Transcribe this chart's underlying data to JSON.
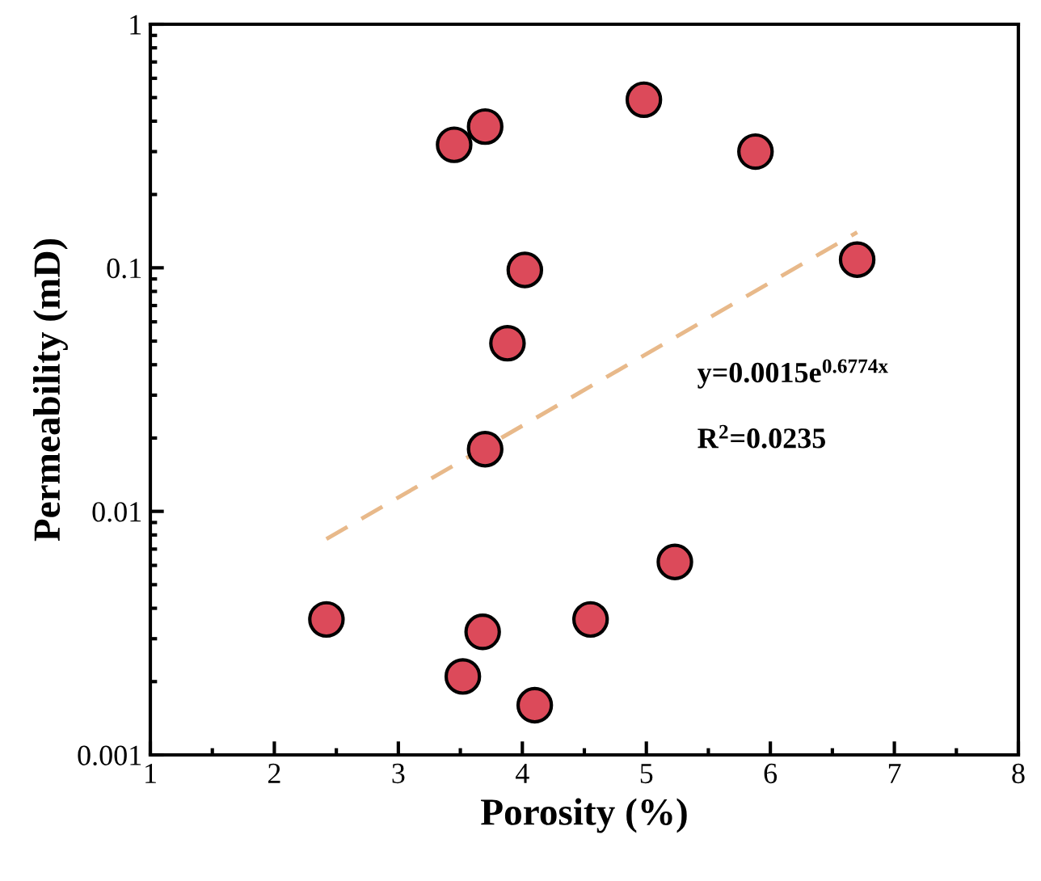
{
  "chart_data": {
    "type": "scatter",
    "xlabel": "Porosity (%)",
    "ylabel": "Permeability (mD)",
    "log": "y",
    "xlim": [
      1,
      8
    ],
    "xticks": [
      1,
      2,
      3,
      4,
      5,
      6,
      7,
      8
    ],
    "ylim": [
      0.001,
      1
    ],
    "yticks": [
      0.001,
      0.01,
      0.1,
      1
    ],
    "grid": false,
    "legend": false,
    "series": [
      {
        "color": "#dc4a5a",
        "marker": "circle",
        "x": [
          3.45,
          3.7,
          4.98,
          5.88,
          4.02,
          3.88,
          6.7,
          3.7,
          2.42,
          3.52,
          3.68,
          4.1,
          4.55,
          5.23
        ],
        "values": [
          0.32,
          0.38,
          0.49,
          0.3,
          0.098,
          0.049,
          0.108,
          0.018,
          0.0036,
          0.0021,
          0.0032,
          0.0016,
          0.0036,
          0.0062
        ]
      },
      {
        "type": "line",
        "color": "#e8b98a",
        "line_style": "dashed",
        "x": [
          2.42,
          6.7
        ],
        "values": [
          0.0077,
          0.14
        ]
      }
    ],
    "annotations": [
      "y=0.0015e$^{0.6774x}$",
      "R$^{2}$=0.0235"
    ]
  }
}
